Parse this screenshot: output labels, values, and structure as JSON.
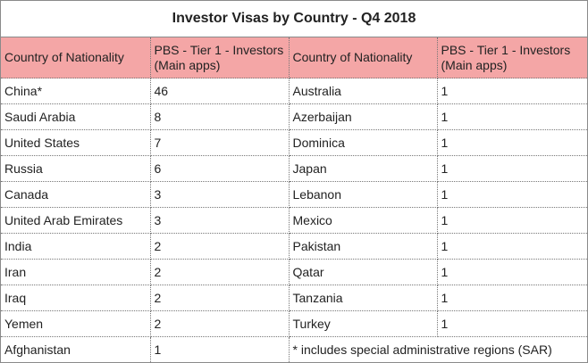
{
  "title": "Investor Visas by Country - Q4 2018",
  "headers": {
    "left_country": "Country of Nationality",
    "left_count": "PBS - Tier 1 - Investors (Main apps)",
    "right_country": "Country of Nationality",
    "right_count": "PBS - Tier 1 - Investors (Main apps)"
  },
  "rows": [
    {
      "left_country": "China*",
      "left_count": "46",
      "right_country": "Australia",
      "right_count": "1"
    },
    {
      "left_country": "Saudi Arabia",
      "left_count": "8",
      "right_country": "Azerbaijan",
      "right_count": "1"
    },
    {
      "left_country": "United States",
      "left_count": "7",
      "right_country": "Dominica",
      "right_count": "1"
    },
    {
      "left_country": "Russia",
      "left_count": "6",
      "right_country": "Japan",
      "right_count": "1"
    },
    {
      "left_country": "Canada",
      "left_count": "3",
      "right_country": "Lebanon",
      "right_count": "1"
    },
    {
      "left_country": "United Arab Emirates",
      "left_count": "3",
      "right_country": "Mexico",
      "right_count": "1"
    },
    {
      "left_country": "India",
      "left_count": "2",
      "right_country": "Pakistan",
      "right_count": "1"
    },
    {
      "left_country": "Iran",
      "left_count": "2",
      "right_country": "Qatar",
      "right_count": "1"
    },
    {
      "left_country": "Iraq",
      "left_count": "2",
      "right_country": "Tanzania",
      "right_count": "1"
    },
    {
      "left_country": "Yemen",
      "left_count": "2",
      "right_country": "Turkey",
      "right_count": "1"
    }
  ],
  "last_row": {
    "left_country": "Afghanistan",
    "left_count": "1",
    "note": "* includes special administrative regions (SAR)"
  },
  "colors": {
    "header_bg": "#f4a6a6"
  }
}
